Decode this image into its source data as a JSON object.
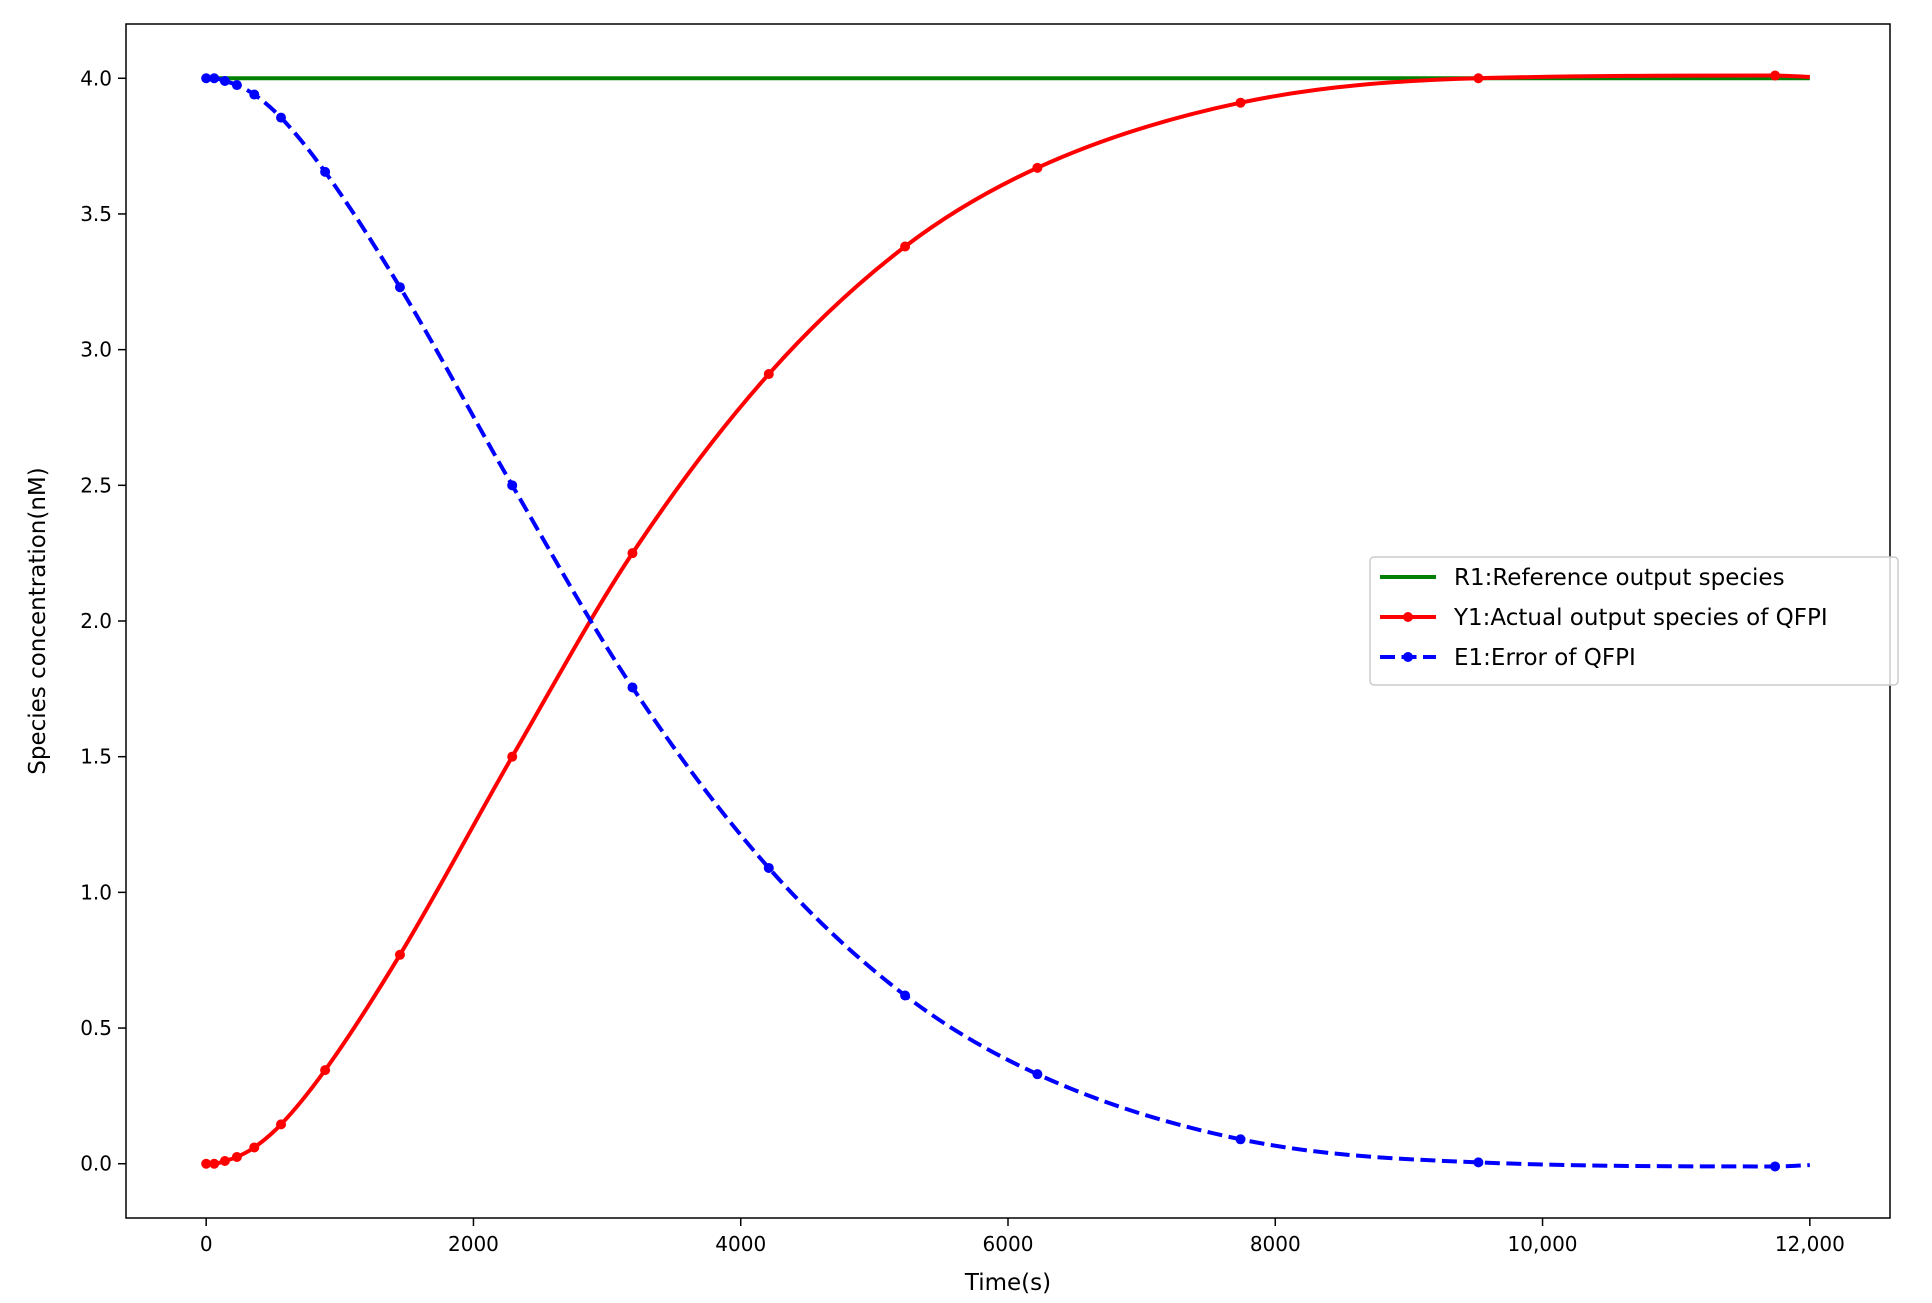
{
  "chart_data": {
    "type": "line",
    "title": "",
    "xlabel": "Time(s)",
    "ylabel": "Species concentration(nM)",
    "xlim": [
      -600,
      12600
    ],
    "ylim": [
      -0.2,
      4.2
    ],
    "xticks": [
      0,
      2000,
      4000,
      6000,
      8000,
      10000,
      12000
    ],
    "xtick_labels": [
      "0",
      "2000",
      "4000",
      "6000",
      "8000",
      "10,000",
      "12,000"
    ],
    "yticks": [
      0.0,
      0.5,
      1.0,
      1.5,
      2.0,
      2.5,
      3.0,
      3.5,
      4.0
    ],
    "ytick_labels": [
      "0.0",
      "0.5",
      "1.0",
      "1.5",
      "2.0",
      "2.5",
      "3.0",
      "3.5",
      "4.0"
    ],
    "grid": false,
    "legend_position": "center-right",
    "series": [
      {
        "name": "R1:Reference output species",
        "color": "#008000",
        "style": "solid",
        "markers": false,
        "x": [
          0,
          12000
        ],
        "y": [
          4.0,
          4.0
        ]
      },
      {
        "name": "Y1:Actual output species of QFPI",
        "color": "#ff0000",
        "style": "solid",
        "markers": true,
        "x": [
          0,
          60,
          140,
          230,
          360,
          560,
          890,
          1450,
          2290,
          3190,
          4210,
          5230,
          6220,
          7740,
          9520,
          11740,
          12000
        ],
        "y": [
          0.0,
          0.0,
          0.01,
          0.025,
          0.06,
          0.145,
          0.345,
          0.77,
          1.5,
          2.25,
          2.91,
          3.38,
          3.67,
          3.91,
          4.0,
          4.01,
          4.005
        ]
      },
      {
        "name": "E1:Error of QFPI",
        "color": "#0000ff",
        "style": "dashed",
        "markers": true,
        "x": [
          0,
          60,
          140,
          230,
          360,
          560,
          890,
          1450,
          2290,
          3190,
          4210,
          5230,
          6220,
          7740,
          9520,
          11740,
          12000
        ],
        "y": [
          4.0,
          4.0,
          3.99,
          3.975,
          3.94,
          3.855,
          3.655,
          3.23,
          2.5,
          1.755,
          1.09,
          0.62,
          0.33,
          0.09,
          0.005,
          -0.01,
          -0.005
        ]
      }
    ]
  }
}
